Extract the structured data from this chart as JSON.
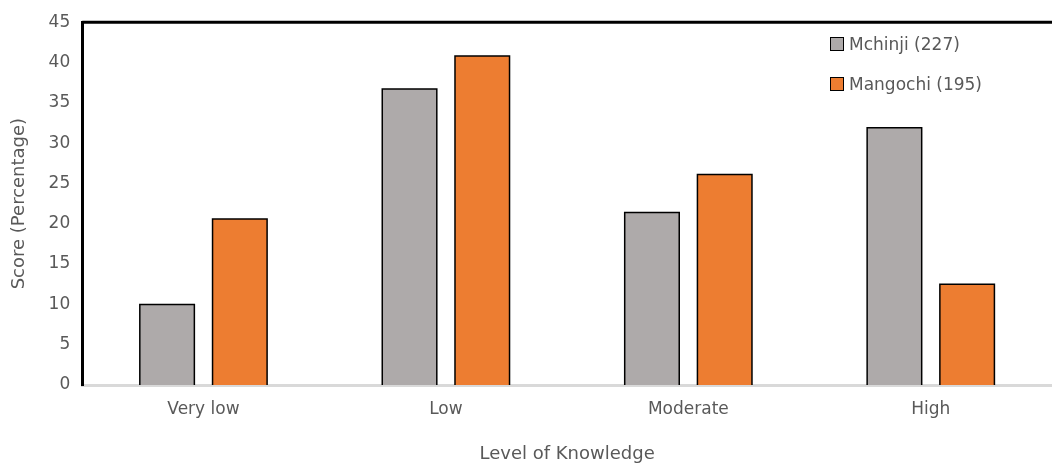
{
  "chart_data": {
    "type": "bar",
    "xlabel": "Level of Knowledge",
    "ylabel": "Score (Percentage)",
    "categories": [
      "Very low",
      "Low",
      "Moderate",
      "High"
    ],
    "series": [
      {
        "name": "Mchinji (227)",
        "color": "#aeaaaa",
        "values": [
          10,
          36.7,
          21.4,
          31.9
        ]
      },
      {
        "name": "Mangochi (195)",
        "color": "#ed7d31",
        "values": [
          20.6,
          40.8,
          26.1,
          12.5
        ]
      }
    ],
    "ylim": [
      0,
      45
    ],
    "yticks": [
      0,
      5,
      10,
      15,
      20,
      25,
      30,
      35,
      40,
      45
    ],
    "grid": false,
    "legend": "top right"
  }
}
